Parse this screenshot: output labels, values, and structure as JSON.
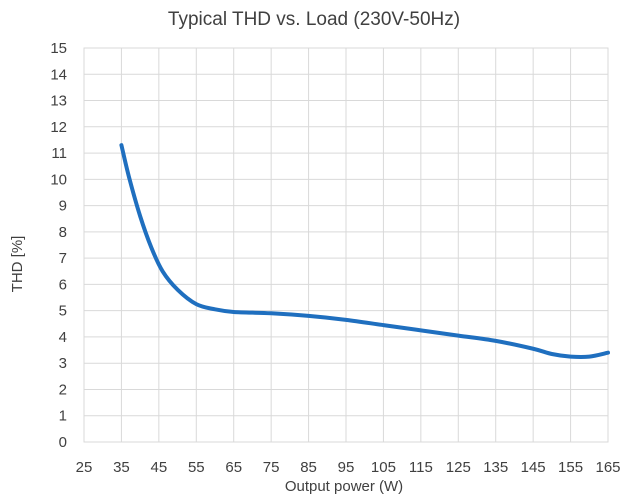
{
  "chart_data": {
    "type": "line",
    "title": "Typical THD vs. Load (230V-50Hz)",
    "xlabel": "Output power (W)",
    "ylabel": "THD [%]",
    "xlim": [
      25,
      165
    ],
    "ylim": [
      0,
      15
    ],
    "x_ticks": [
      25,
      35,
      45,
      55,
      65,
      75,
      85,
      95,
      105,
      115,
      125,
      135,
      145,
      155,
      165
    ],
    "y_ticks": [
      0,
      1,
      2,
      3,
      4,
      5,
      6,
      7,
      8,
      9,
      10,
      11,
      12,
      13,
      14,
      15
    ],
    "grid": true,
    "legend": "none",
    "series": [
      {
        "color": "#1f6fbf",
        "x": [
          35,
          37,
          40,
          43,
          46,
          50,
          55,
          60,
          65,
          75,
          85,
          95,
          105,
          115,
          125,
          135,
          145,
          150,
          155,
          160,
          165
        ],
        "y": [
          11.3,
          10.1,
          8.6,
          7.4,
          6.5,
          5.8,
          5.25,
          5.05,
          4.95,
          4.9,
          4.8,
          4.65,
          4.45,
          4.25,
          4.05,
          3.85,
          3.55,
          3.35,
          3.25,
          3.25,
          3.4
        ]
      }
    ]
  }
}
